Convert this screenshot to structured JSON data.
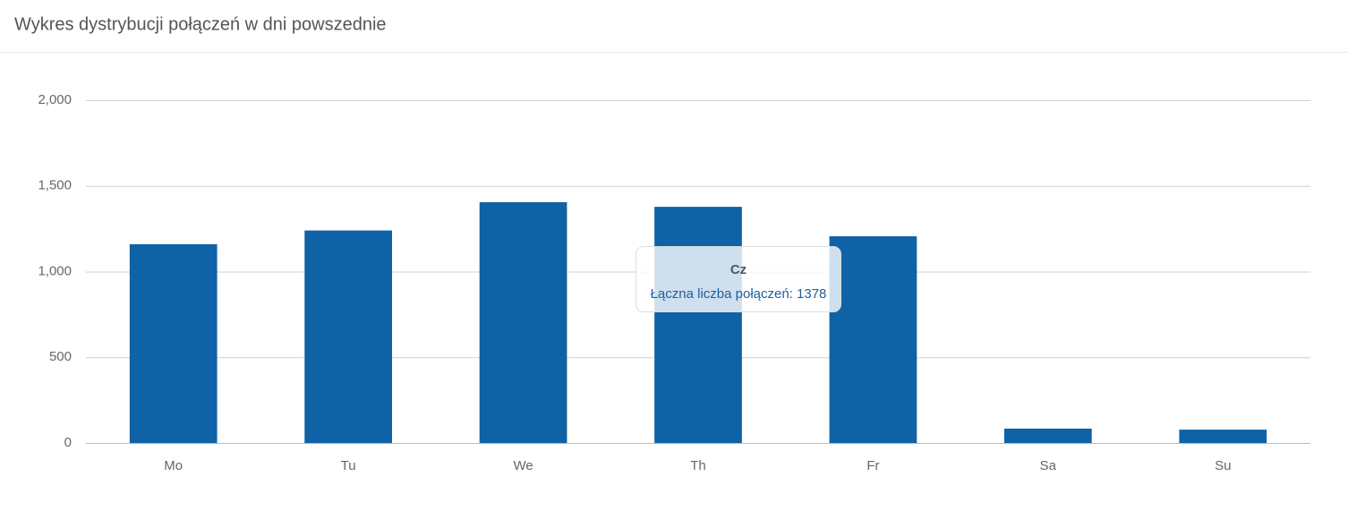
{
  "chart_data": {
    "type": "bar",
    "title": "Wykres dystrybucji połączeń w dni powszednie",
    "categories": [
      "Mo",
      "Tu",
      "We",
      "Th",
      "Fr",
      "Sa",
      "Su"
    ],
    "values": [
      1160,
      1240,
      1405,
      1378,
      1206,
      84,
      78
    ],
    "color": "#0e62a5",
    "ylim": [
      0,
      2000
    ],
    "yticks": [
      0,
      500,
      {
        "value": 1000,
        "label": "1,000"
      },
      {
        "value": 1500,
        "label": "1,500"
      },
      {
        "value": 2000,
        "label": "2,000"
      }
    ],
    "grid": true,
    "tooltip": {
      "title": "Cz",
      "label": "Łączna liczba połączeń: 1378"
    }
  }
}
